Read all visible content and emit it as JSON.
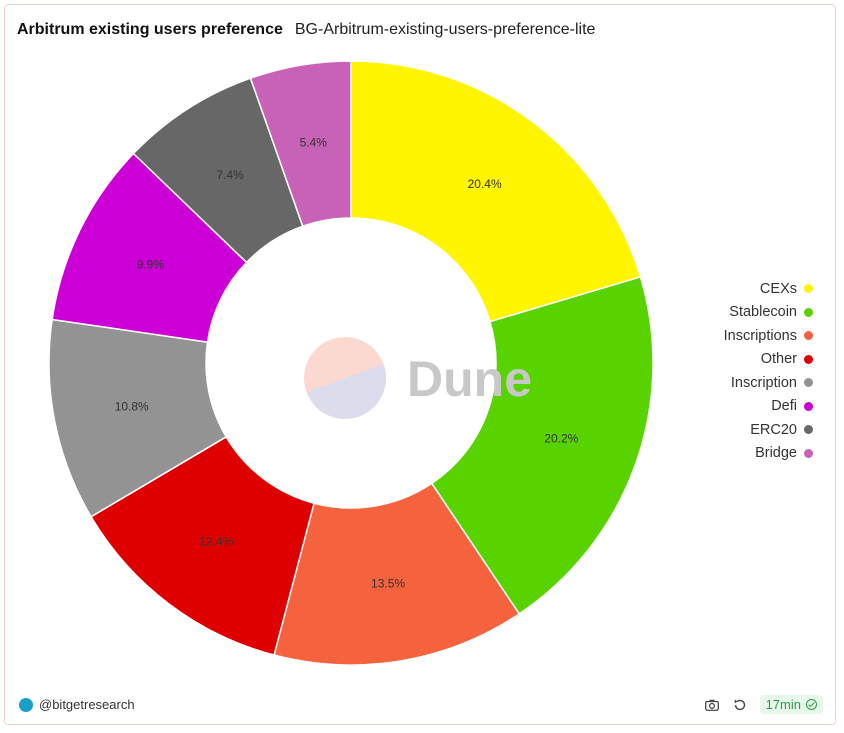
{
  "header": {
    "title": "Arbitrum existing users preference",
    "subtitle": "BG-Arbitrum-existing-users-preference-lite"
  },
  "watermark": {
    "text": "Dune"
  },
  "footer": {
    "author": "@bitgetresearch",
    "refresh_age": "17min",
    "icons": [
      "camera-icon",
      "refresh-icon",
      "check-circle-icon"
    ]
  },
  "chart_data": {
    "type": "pie",
    "donut": true,
    "categories": [
      "CEXs",
      "Stablecoin",
      "Inscriptions",
      "Other",
      "Inscription",
      "Defi",
      "ERC20",
      "Bridge"
    ],
    "values": [
      20.4,
      20.2,
      13.5,
      12.4,
      10.8,
      9.9,
      7.4,
      5.4
    ],
    "labels": [
      "20.4%",
      "20.2%",
      "13.5%",
      "12.4%",
      "10.8%",
      "9.9%",
      "7.4%",
      "5.4%"
    ],
    "colors": [
      "#fff500",
      "#58d300",
      "#f4623e",
      "#de0000",
      "#939393",
      "#cc00d6",
      "#676767",
      "#c862b6"
    ],
    "legend_position": "right"
  }
}
